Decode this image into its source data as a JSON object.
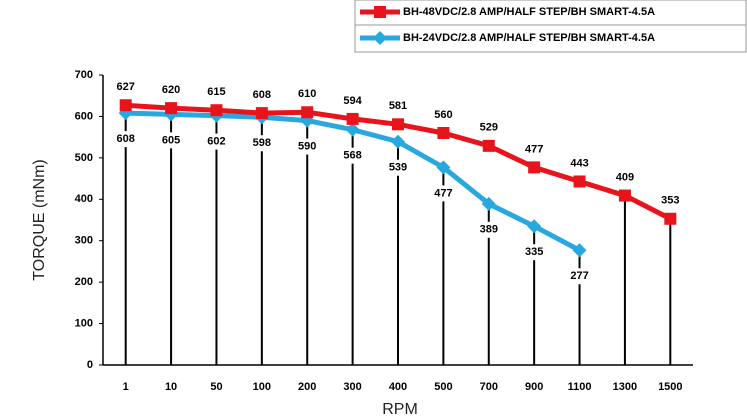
{
  "chart_data": {
    "type": "line",
    "x_label": "RPM",
    "y_label": "TORQUE (mNm)",
    "categories": [
      "1",
      "10",
      "50",
      "100",
      "200",
      "300",
      "400",
      "500",
      "700",
      "900",
      "1100",
      "1300",
      "1500"
    ],
    "series": [
      {
        "name": "BH-48VDC/2.8 AMP/HALF STEP/BH SMART-4.5A",
        "color": "#e8141b",
        "marker": "square",
        "values": [
          627,
          620,
          615,
          608,
          610,
          594,
          581,
          560,
          529,
          477,
          443,
          409,
          353
        ]
      },
      {
        "name": "BH-24VDC/2.8 AMP/HALF STEP/BH SMART-4.5A",
        "color": "#29a8e0",
        "marker": "diamond",
        "values": [
          608,
          605,
          602,
          598,
          590,
          568,
          539,
          477,
          389,
          335,
          277,
          null,
          null
        ]
      }
    ],
    "ylim": [
      0,
      700
    ],
    "yticks": [
      0,
      100,
      200,
      300,
      400,
      500,
      600,
      700
    ]
  }
}
